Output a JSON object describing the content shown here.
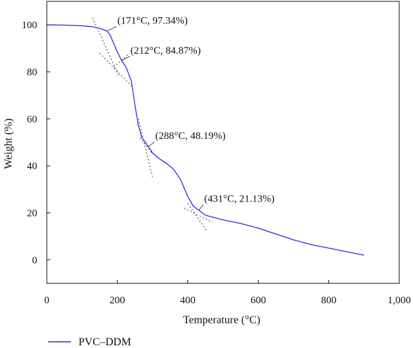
{
  "chart_data": {
    "type": "line",
    "xlabel": "Temperature (°C)",
    "ylabel": "Weight (%)",
    "xlim": [
      0,
      1000
    ],
    "ylim": [
      -10,
      110
    ],
    "x_ticks": [
      0,
      200,
      400,
      600,
      800,
      1000
    ],
    "x_tick_labels": [
      "0",
      "200",
      "400",
      "600",
      "800",
      "1,000"
    ],
    "y_ticks": [
      0,
      20,
      40,
      60,
      80,
      100
    ],
    "y_tick_labels": [
      "0",
      "20",
      "40",
      "60",
      "80",
      "100"
    ],
    "grid": false,
    "legend_position": "bottom-left",
    "series": [
      {
        "name": "PVC–DDM",
        "color": "#2a2ae0",
        "x": [
          0,
          50,
          100,
          130,
          150,
          165,
          171,
          180,
          190,
          200,
          212,
          225,
          240,
          250,
          260,
          270,
          280,
          288,
          300,
          320,
          340,
          360,
          380,
          400,
          415,
          431,
          450,
          500,
          550,
          600,
          650,
          700,
          750,
          800,
          850,
          900
        ],
        "y": [
          100,
          99.9,
          99.6,
          99.2,
          98.5,
          97.8,
          97.34,
          95.5,
          92,
          88.5,
          84.87,
          82,
          76,
          66,
          57,
          52,
          50,
          48.19,
          45.5,
          43,
          41,
          38.5,
          34,
          27,
          23,
          21.13,
          19,
          17,
          15.5,
          13.5,
          11,
          8.5,
          6.5,
          5,
          3.5,
          2
        ]
      }
    ],
    "annotations": [
      {
        "label": "(171°C, 97.34%)",
        "x": 171,
        "y": 97.34
      },
      {
        "label": "(212°C, 84.87%)",
        "x": 212,
        "y": 84.87
      },
      {
        "label": "(288°C, 48.19%)",
        "x": 288,
        "y": 48.19
      },
      {
        "label": "(431°C, 21.13%)",
        "x": 431,
        "y": 21.13
      }
    ]
  }
}
